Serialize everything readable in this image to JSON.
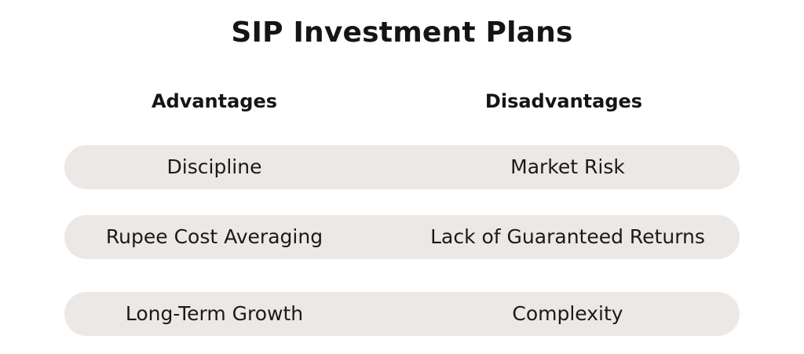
{
  "title": "SIP Investment Plans",
  "headers": {
    "advantages": "Advantages",
    "disadvantages": "Disadvantages"
  },
  "rows": [
    {
      "advantage": "Discipline",
      "disadvantage": "Market Risk"
    },
    {
      "advantage": "Rupee Cost Averaging",
      "disadvantage": "Lack of Guaranteed Returns"
    },
    {
      "advantage": "Long-Term Growth",
      "disadvantage": "Complexity"
    }
  ],
  "colors": {
    "row_background": "#ece8e5",
    "text": "#151515",
    "background": "#ffffff"
  }
}
